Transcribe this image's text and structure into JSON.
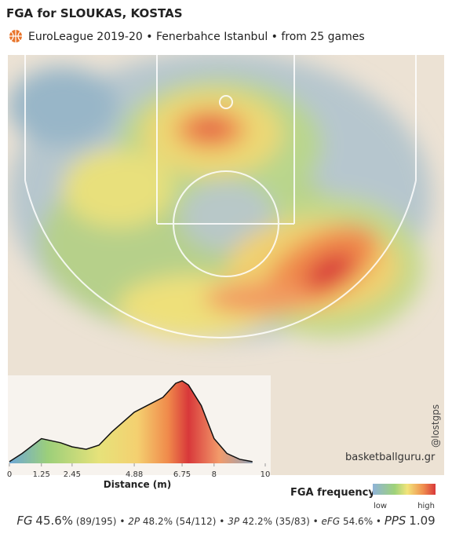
{
  "header": {
    "title": "FGA for SLOUKAS, KOSTAS",
    "subtitle": "EuroLeague 2019-20 • Fenerbahce Istanbul • from  25 games"
  },
  "chart_data": {
    "type": "line",
    "xlabel": "Distance (m)",
    "x": [
      0,
      0.5,
      1.25,
      2,
      2.45,
      3,
      3.5,
      4,
      4.88,
      5.5,
      6,
      6.5,
      6.75,
      7,
      7.5,
      8,
      8.5,
      9,
      9.5
    ],
    "values": [
      0.02,
      0.12,
      0.3,
      0.25,
      0.2,
      0.17,
      0.22,
      0.38,
      0.62,
      0.72,
      0.8,
      0.97,
      1,
      0.95,
      0.7,
      0.3,
      0.12,
      0.05,
      0.02
    ],
    "xlim": [
      0,
      10
    ],
    "xticks": [
      0,
      1.25,
      2.45,
      4.88,
      6.75,
      8,
      10
    ],
    "ylim": [
      0,
      1
    ]
  },
  "watermark": {
    "handle": "@lostgps",
    "site": "basketballguru.gr"
  },
  "legend": {
    "title": "FGA frequency",
    "low": "low",
    "high": "high"
  },
  "stats": {
    "separator": "•",
    "items": [
      {
        "label": "FG",
        "value": "45.6%",
        "detail": "(89/195)"
      },
      {
        "label": "2P",
        "value": "48.2%",
        "detail": "(54/112)"
      },
      {
        "label": "3P",
        "value": "42.2%",
        "detail": "(35/83)"
      },
      {
        "label": "eFG",
        "value": "54.6%"
      },
      {
        "label": "PPS",
        "value": "1.09"
      }
    ]
  }
}
